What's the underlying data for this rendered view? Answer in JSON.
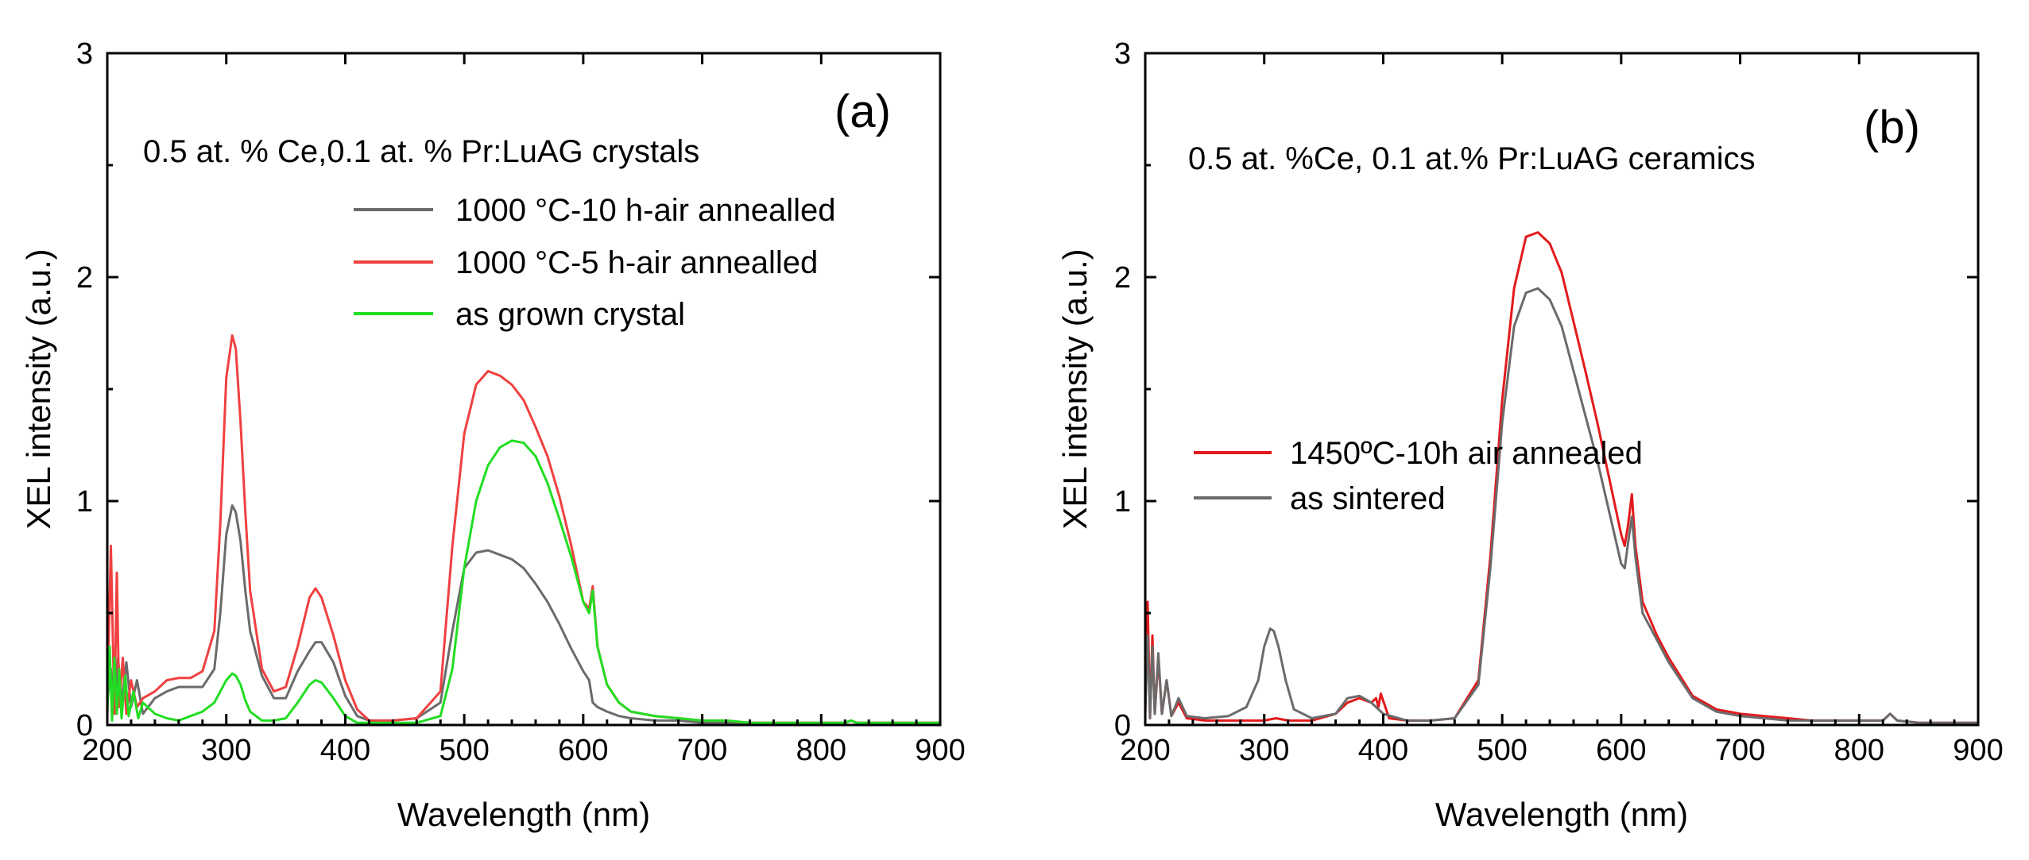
{
  "chart_data": [
    {
      "type": "line",
      "panel_label": "(a)",
      "annotation": "0.5 at. % Ce,0.1 at. % Pr:LuAG crystals",
      "xlabel": "Wavelength (nm)",
      "ylabel": "XEL intensity (a.u.)",
      "xlim": [
        200,
        900
      ],
      "ylim": [
        0,
        3
      ],
      "xticks": [
        200,
        300,
        400,
        500,
        600,
        700,
        800,
        900
      ],
      "yticks": [
        0,
        1,
        2,
        3
      ],
      "legend_position": "top-right",
      "series": [
        {
          "name": "1000 °C-10 h-air annealled",
          "color": "#6b6b6b",
          "x": [
            200,
            203,
            206,
            209,
            212,
            216,
            220,
            225,
            230,
            240,
            250,
            260,
            270,
            280,
            290,
            295,
            300,
            305,
            308,
            312,
            316,
            320,
            330,
            340,
            350,
            360,
            370,
            375,
            380,
            390,
            400,
            410,
            420,
            440,
            460,
            480,
            490,
            500,
            510,
            520,
            530,
            540,
            550,
            560,
            570,
            580,
            590,
            600,
            605,
            608,
            612,
            620,
            630,
            640,
            660,
            680,
            700,
            720,
            740,
            760,
            780,
            800,
            820,
            825,
            830,
            850,
            880,
            900
          ],
          "y": [
            0.1,
            0.25,
            0.05,
            0.3,
            0.1,
            0.28,
            0.08,
            0.2,
            0.05,
            0.12,
            0.15,
            0.17,
            0.17,
            0.17,
            0.25,
            0.5,
            0.85,
            0.98,
            0.95,
            0.82,
            0.6,
            0.42,
            0.22,
            0.12,
            0.12,
            0.24,
            0.33,
            0.37,
            0.37,
            0.28,
            0.13,
            0.04,
            0.02,
            0.02,
            0.03,
            0.1,
            0.42,
            0.7,
            0.77,
            0.78,
            0.76,
            0.74,
            0.7,
            0.63,
            0.55,
            0.45,
            0.34,
            0.24,
            0.2,
            0.1,
            0.08,
            0.06,
            0.04,
            0.03,
            0.02,
            0.02,
            0.01,
            0.01,
            0.01,
            0.01,
            0.01,
            0.01,
            0.01,
            0.02,
            0.01,
            0.01,
            0.01,
            0.01
          ]
        },
        {
          "name": "1000 °C-5 h-air annealled",
          "color": "#f04040",
          "x": [
            200,
            203,
            206,
            208,
            210,
            213,
            216,
            220,
            225,
            230,
            240,
            250,
            260,
            270,
            280,
            290,
            295,
            300,
            305,
            308,
            312,
            316,
            320,
            330,
            340,
            350,
            360,
            370,
            375,
            380,
            390,
            400,
            410,
            420,
            440,
            460,
            480,
            490,
            500,
            510,
            520,
            530,
            540,
            550,
            560,
            570,
            580,
            590,
            600,
            605,
            608,
            612,
            620,
            630,
            640,
            660,
            680,
            700,
            720,
            740,
            760,
            780,
            800,
            820,
            825,
            830,
            850,
            880,
            900
          ],
          "y": [
            0.1,
            0.8,
            0.05,
            0.68,
            0.08,
            0.3,
            0.05,
            0.2,
            0.08,
            0.12,
            0.15,
            0.2,
            0.21,
            0.21,
            0.24,
            0.42,
            0.9,
            1.55,
            1.74,
            1.68,
            1.35,
            0.95,
            0.6,
            0.25,
            0.15,
            0.17,
            0.35,
            0.57,
            0.61,
            0.57,
            0.4,
            0.2,
            0.07,
            0.02,
            0.02,
            0.03,
            0.15,
            0.8,
            1.3,
            1.52,
            1.58,
            1.56,
            1.52,
            1.45,
            1.33,
            1.2,
            1.02,
            0.8,
            0.55,
            0.52,
            0.62,
            0.35,
            0.18,
            0.1,
            0.06,
            0.04,
            0.03,
            0.02,
            0.02,
            0.01,
            0.01,
            0.01,
            0.01,
            0.01,
            0.02,
            0.01,
            0.01,
            0.01,
            0.01
          ]
        },
        {
          "name": "as grown crystal",
          "color": "#22dd22",
          "x": [
            200,
            202,
            204,
            206,
            208,
            210,
            212,
            215,
            218,
            222,
            226,
            230,
            240,
            250,
            260,
            270,
            280,
            290,
            295,
            300,
            305,
            308,
            312,
            316,
            320,
            330,
            340,
            350,
            360,
            370,
            375,
            380,
            390,
            400,
            410,
            420,
            440,
            460,
            480,
            490,
            500,
            510,
            520,
            530,
            540,
            550,
            560,
            570,
            580,
            590,
            600,
            605,
            608,
            612,
            620,
            630,
            640,
            660,
            680,
            700,
            720,
            740,
            760,
            780,
            800,
            820,
            825,
            830,
            850,
            880,
            900
          ],
          "y": [
            0.05,
            0.35,
            0.02,
            0.3,
            0.05,
            0.25,
            0.03,
            0.22,
            0.04,
            0.15,
            0.03,
            0.1,
            0.05,
            0.03,
            0.02,
            0.04,
            0.06,
            0.1,
            0.15,
            0.2,
            0.23,
            0.22,
            0.18,
            0.11,
            0.06,
            0.02,
            0.02,
            0.03,
            0.1,
            0.18,
            0.2,
            0.19,
            0.12,
            0.04,
            0.01,
            0.01,
            0.01,
            0.01,
            0.04,
            0.25,
            0.7,
            1.0,
            1.16,
            1.24,
            1.27,
            1.26,
            1.2,
            1.08,
            0.92,
            0.75,
            0.55,
            0.5,
            0.6,
            0.35,
            0.18,
            0.1,
            0.06,
            0.04,
            0.03,
            0.02,
            0.02,
            0.01,
            0.01,
            0.01,
            0.01,
            0.01,
            0.02,
            0.01,
            0.01,
            0.01,
            0.01
          ]
        }
      ]
    },
    {
      "type": "line",
      "panel_label": "(b)",
      "annotation": "0.5 at. %Ce, 0.1 at.% Pr:LuAG ceramics",
      "xlabel": "Wavelength (nm)",
      "ylabel": "XEL intensity (a.u.)",
      "xlim": [
        200,
        900
      ],
      "ylim": [
        0,
        3
      ],
      "xticks": [
        200,
        300,
        400,
        500,
        600,
        700,
        800,
        900
      ],
      "yticks": [
        0,
        1,
        2,
        3
      ],
      "legend_position": "center-left",
      "series": [
        {
          "name": "1450ºC-10h air annealed",
          "color": "#e31a1c",
          "x": [
            200,
            202,
            204,
            206,
            208,
            211,
            214,
            218,
            222,
            228,
            235,
            250,
            270,
            290,
            300,
            310,
            320,
            340,
            360,
            370,
            380,
            390,
            394,
            396,
            398,
            405,
            420,
            440,
            460,
            480,
            490,
            500,
            510,
            520,
            530,
            540,
            550,
            560,
            570,
            580,
            590,
            600,
            603,
            606,
            609,
            612,
            618,
            630,
            640,
            660,
            680,
            700,
            720,
            740,
            760,
            780,
            800,
            820,
            826,
            832,
            850,
            880,
            900
          ],
          "y": [
            0.05,
            0.55,
            0.03,
            0.4,
            0.05,
            0.3,
            0.05,
            0.2,
            0.04,
            0.1,
            0.03,
            0.02,
            0.02,
            0.02,
            0.02,
            0.03,
            0.02,
            0.02,
            0.05,
            0.1,
            0.12,
            0.1,
            0.12,
            0.08,
            0.14,
            0.03,
            0.02,
            0.02,
            0.03,
            0.2,
            0.75,
            1.45,
            1.95,
            2.18,
            2.2,
            2.15,
            2.02,
            1.8,
            1.58,
            1.35,
            1.1,
            0.85,
            0.8,
            0.9,
            1.03,
            0.8,
            0.55,
            0.4,
            0.3,
            0.13,
            0.07,
            0.05,
            0.04,
            0.03,
            0.02,
            0.02,
            0.02,
            0.02,
            0.05,
            0.02,
            0.01,
            0.01,
            0.01
          ]
        },
        {
          "name": "as sintered",
          "color": "#6b6b6b",
          "x": [
            200,
            202,
            204,
            206,
            208,
            211,
            214,
            218,
            222,
            228,
            235,
            250,
            270,
            285,
            295,
            300,
            305,
            308,
            312,
            318,
            325,
            340,
            360,
            370,
            380,
            390,
            400,
            420,
            440,
            460,
            480,
            490,
            500,
            510,
            520,
            530,
            540,
            550,
            560,
            570,
            580,
            590,
            600,
            603,
            606,
            609,
            612,
            618,
            630,
            640,
            660,
            680,
            700,
            720,
            740,
            760,
            780,
            800,
            820,
            826,
            832,
            850,
            880,
            900
          ],
          "y": [
            0.05,
            0.4,
            0.03,
            0.35,
            0.05,
            0.32,
            0.05,
            0.2,
            0.04,
            0.12,
            0.04,
            0.03,
            0.04,
            0.08,
            0.2,
            0.35,
            0.43,
            0.42,
            0.35,
            0.2,
            0.07,
            0.03,
            0.05,
            0.12,
            0.13,
            0.1,
            0.05,
            0.02,
            0.02,
            0.03,
            0.18,
            0.7,
            1.35,
            1.78,
            1.93,
            1.95,
            1.9,
            1.78,
            1.58,
            1.38,
            1.18,
            0.95,
            0.72,
            0.7,
            0.82,
            0.93,
            0.75,
            0.5,
            0.38,
            0.28,
            0.12,
            0.06,
            0.04,
            0.03,
            0.02,
            0.02,
            0.02,
            0.02,
            0.02,
            0.05,
            0.02,
            0.01,
            0.01,
            0.01
          ]
        }
      ]
    }
  ]
}
